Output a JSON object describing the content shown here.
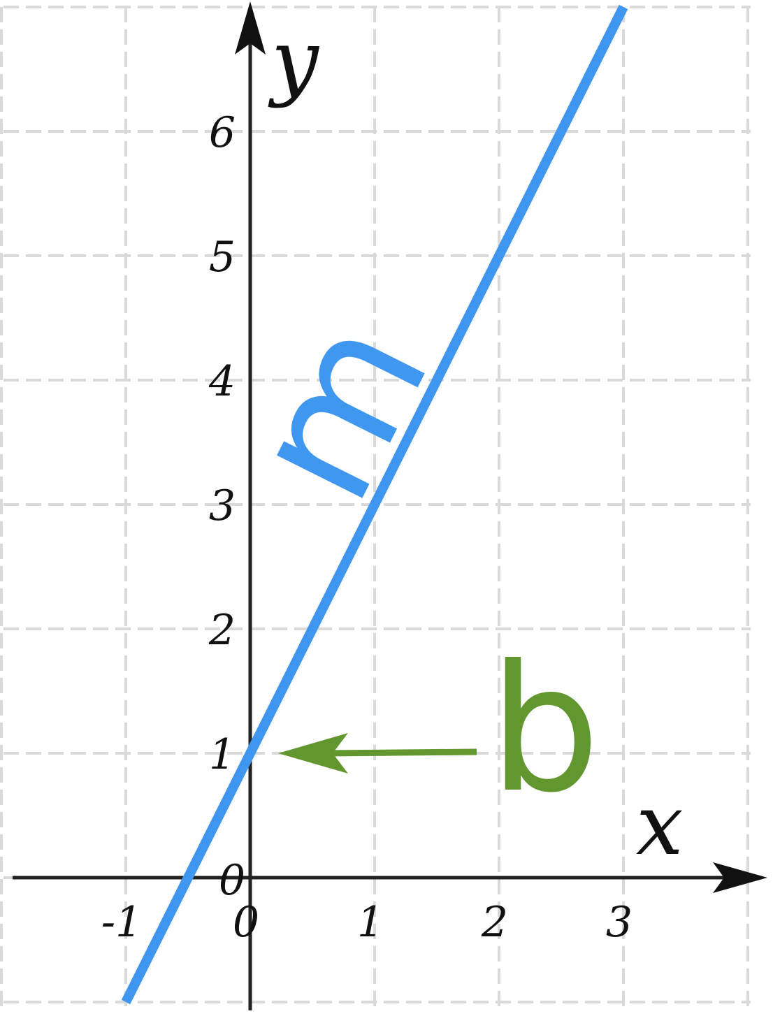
{
  "chart_data": {
    "type": "line",
    "xlabel": "x",
    "ylabel": "y",
    "xlim": [
      -2,
      4
    ],
    "ylim": [
      -1,
      7
    ],
    "grid": true,
    "x_ticks": [
      {
        "value": -1,
        "label": "-1"
      },
      {
        "value": 0,
        "label": "0"
      },
      {
        "value": 1,
        "label": "1"
      },
      {
        "value": 2,
        "label": "2"
      },
      {
        "value": 3,
        "label": "3"
      }
    ],
    "y_ticks": [
      {
        "value": 0,
        "label": "0"
      },
      {
        "value": 1,
        "label": "1"
      },
      {
        "value": 2,
        "label": "2"
      },
      {
        "value": 3,
        "label": "3"
      },
      {
        "value": 4,
        "label": "4"
      },
      {
        "value": 5,
        "label": "5"
      },
      {
        "value": 6,
        "label": "6"
      }
    ],
    "series": [
      {
        "slope": 2,
        "intercept": 1,
        "x": [
          -1,
          3
        ],
        "y": [
          -1,
          7
        ],
        "color": "#4097f0"
      }
    ],
    "annotations": [
      {
        "text": "m",
        "meaning": "slope",
        "color": "#4097f0"
      },
      {
        "text": "b",
        "meaning": "y-intercept",
        "color": "#62962f",
        "points_to": [
          0,
          1
        ]
      }
    ]
  },
  "colors": {
    "grid": "#d9d9d9",
    "axis": "#222222",
    "line": "#4097f0",
    "intercept": "#62962f"
  }
}
